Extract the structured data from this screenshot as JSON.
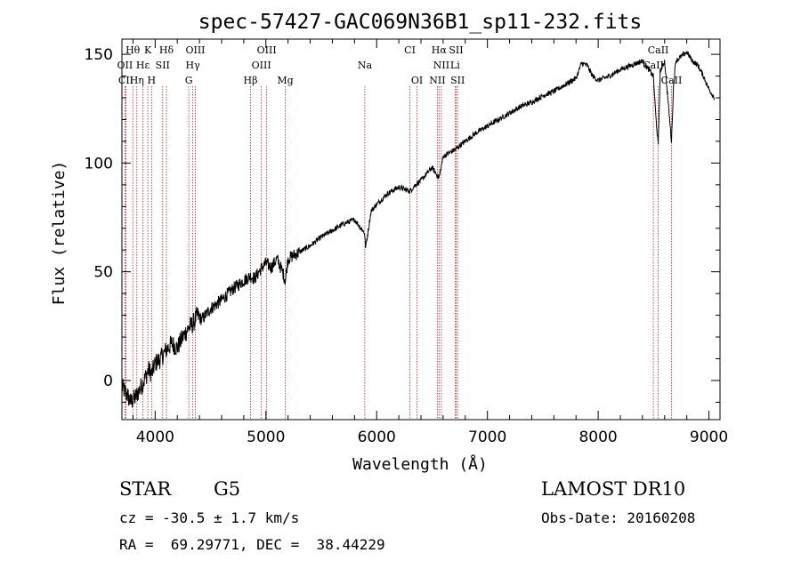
{
  "chart_data": {
    "type": "line",
    "title": "spec-57427-GAC069N36B1_sp11-232.fits",
    "xlabel": "Wavelength (Å)",
    "ylabel": "Flux (relative)",
    "xlim": [
      3700,
      9100
    ],
    "ylim": [
      -18,
      157
    ],
    "xticks": [
      4000,
      5000,
      6000,
      7000,
      8000,
      9000
    ],
    "yticks": [
      0,
      50,
      100,
      150
    ],
    "grid": false,
    "series": [
      {
        "x": [
          3700,
          3740,
          3780,
          3820,
          3860,
          3900,
          3940,
          3970,
          4000,
          4050,
          4100,
          4150,
          4200,
          4250,
          4300,
          4340,
          4380,
          4420,
          4500,
          4600,
          4700,
          4800,
          4861,
          4900,
          4950,
          5000,
          5050,
          5100,
          5150,
          5175,
          5200,
          5300,
          5400,
          5500,
          5600,
          5700,
          5800,
          5890,
          5900,
          5950,
          6000,
          6100,
          6200,
          6300,
          6350,
          6400,
          6500,
          6563,
          6600,
          6700,
          6800,
          6900,
          7000,
          7100,
          7200,
          7300,
          7400,
          7500,
          7600,
          7700,
          7800,
          7850,
          7900,
          7950,
          8000,
          8100,
          8200,
          8300,
          8400,
          8498,
          8520,
          8542,
          8560,
          8600,
          8662,
          8680,
          8700,
          8750,
          8800,
          8850,
          8900,
          8950,
          9000,
          9050
        ],
        "y": [
          -3,
          -6,
          -10,
          -8,
          -4,
          0,
          5,
          3,
          8,
          10,
          14,
          17,
          15,
          20,
          24,
          26,
          30,
          28,
          33,
          37,
          42,
          46,
          48,
          47,
          51,
          54,
          52,
          56,
          50,
          46,
          56,
          59,
          62,
          66,
          69,
          72,
          74,
          68,
          61,
          78,
          81,
          86,
          89,
          87,
          90,
          92,
          98,
          93,
          103,
          106,
          110,
          114,
          117,
          120,
          123,
          126,
          128,
          131,
          133,
          136,
          139,
          146,
          145,
          140,
          138,
          140,
          143,
          145,
          147,
          140,
          122,
          108,
          142,
          147,
          110,
          135,
          147,
          149,
          151,
          147,
          145,
          140,
          134,
          130
        ]
      }
    ],
    "spectral_lines": [
      {
        "name": "Hθ",
        "wavelength": 3798,
        "row": 0
      },
      {
        "name": "OII",
        "wavelength": 3727,
        "row": 1
      },
      {
        "name": "CII",
        "wavelength": 3736,
        "row": 2
      },
      {
        "name": "K",
        "wavelength": 3934,
        "row": 0
      },
      {
        "name": "Hε",
        "wavelength": 3889,
        "row": 1
      },
      {
        "name": "Hη",
        "wavelength": 3835,
        "row": 2
      },
      {
        "name": "SII",
        "wavelength": 4068,
        "row": 1
      },
      {
        "name": "H",
        "wavelength": 3968,
        "row": 2
      },
      {
        "name": "Hδ",
        "wavelength": 4102,
        "row": 0
      },
      {
        "name": "OIII",
        "wavelength": 4363,
        "row": 0
      },
      {
        "name": "Hγ",
        "wavelength": 4340,
        "row": 1
      },
      {
        "name": "G",
        "wavelength": 4304,
        "row": 2
      },
      {
        "name": "OIII",
        "wavelength": 5007,
        "row": 0
      },
      {
        "name": "OIII",
        "wavelength": 4959,
        "row": 1
      },
      {
        "name": "Hβ",
        "wavelength": 4861,
        "row": 2
      },
      {
        "name": "Mg",
        "wavelength": 5175,
        "row": 2
      },
      {
        "name": "Na",
        "wavelength": 5893,
        "row": 1
      },
      {
        "name": "CI",
        "wavelength": 6300,
        "row": 0
      },
      {
        "name": "OI",
        "wavelength": 6364,
        "row": 2
      },
      {
        "name": "Hα",
        "wavelength": 6563,
        "row": 0
      },
      {
        "name": "SII",
        "wavelength": 6717,
        "row": 0
      },
      {
        "name": "NII",
        "wavelength": 6584,
        "row": 1
      },
      {
        "name": "Li",
        "wavelength": 6708,
        "row": 1
      },
      {
        "name": "NII",
        "wavelength": 6548,
        "row": 2
      },
      {
        "name": "SII",
        "wavelength": 6731,
        "row": 2
      },
      {
        "name": "CaII",
        "wavelength": 8542,
        "row": 0
      },
      {
        "name": "CaII",
        "wavelength": 8498,
        "row": 1
      },
      {
        "name": "CaII",
        "wavelength": 8662,
        "row": 2
      }
    ]
  },
  "info": {
    "object_class": "STAR",
    "subclass": "G5",
    "survey": "LAMOST DR10",
    "redshift": "cz = -30.5 ± 1.7 km/s",
    "obs_date": "Obs-Date: 20160208",
    "coords": "RA =  69.29771, DEC =  38.44229"
  },
  "colors": {
    "line_marker": "#b22222",
    "spectrum": "#000000",
    "axes": "#000000"
  }
}
